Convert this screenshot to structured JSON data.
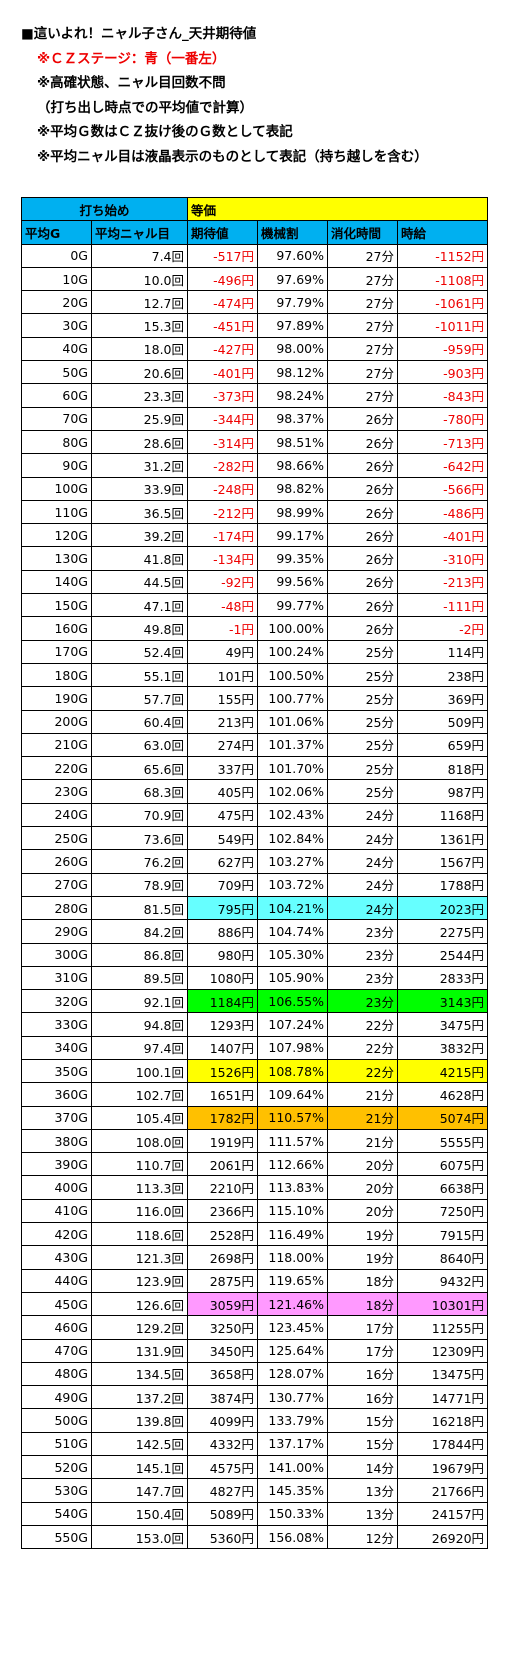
{
  "notes": {
    "title": "■這いよれ！ニャル子さん_天井期待値",
    "stage": "※ＣＺステージ：青（一番左）",
    "line3": "※高確状態、ニャル目回数不問",
    "line4": "（打ち出し時点での平均値で計算）",
    "line5": "※平均Ｇ数はＣＺ抜け後のＧ数として表記",
    "line6": "※平均ニャル目は液晶表示のものとして表記（持ち越しを含む）"
  },
  "table": {
    "header_start": "打ち始め",
    "header_rate": "等価",
    "columns": [
      "平均G",
      "平均ニャル目",
      "期待値",
      "機械割",
      "消化時間",
      "時給"
    ],
    "rows": [
      [
        "0G",
        "7.4回",
        "-517円",
        "97.60%",
        "27分",
        "-1152円"
      ],
      [
        "10G",
        "10.0回",
        "-496円",
        "97.69%",
        "27分",
        "-1108円"
      ],
      [
        "20G",
        "12.7回",
        "-474円",
        "97.79%",
        "27分",
        "-1061円"
      ],
      [
        "30G",
        "15.3回",
        "-451円",
        "97.89%",
        "27分",
        "-1011円"
      ],
      [
        "40G",
        "18.0回",
        "-427円",
        "98.00%",
        "27分",
        "-959円"
      ],
      [
        "50G",
        "20.6回",
        "-401円",
        "98.12%",
        "27分",
        "-903円"
      ],
      [
        "60G",
        "23.3回",
        "-373円",
        "98.24%",
        "27分",
        "-843円"
      ],
      [
        "70G",
        "25.9回",
        "-344円",
        "98.37%",
        "26分",
        "-780円"
      ],
      [
        "80G",
        "28.6回",
        "-314円",
        "98.51%",
        "26分",
        "-713円"
      ],
      [
        "90G",
        "31.2回",
        "-282円",
        "98.66%",
        "26分",
        "-642円"
      ],
      [
        "100G",
        "33.9回",
        "-248円",
        "98.82%",
        "26分",
        "-566円"
      ],
      [
        "110G",
        "36.5回",
        "-212円",
        "98.99%",
        "26分",
        "-486円"
      ],
      [
        "120G",
        "39.2回",
        "-174円",
        "99.17%",
        "26分",
        "-401円"
      ],
      [
        "130G",
        "41.8回",
        "-134円",
        "99.35%",
        "26分",
        "-310円"
      ],
      [
        "140G",
        "44.5回",
        "-92円",
        "99.56%",
        "26分",
        "-213円"
      ],
      [
        "150G",
        "47.1回",
        "-48円",
        "99.77%",
        "26分",
        "-111円"
      ],
      [
        "160G",
        "49.8回",
        "-1円",
        "100.00%",
        "26分",
        "-2円"
      ],
      [
        "170G",
        "52.4回",
        "49円",
        "100.24%",
        "25分",
        "114円"
      ],
      [
        "180G",
        "55.1回",
        "101円",
        "100.50%",
        "25分",
        "238円"
      ],
      [
        "190G",
        "57.7回",
        "155円",
        "100.77%",
        "25分",
        "369円"
      ],
      [
        "200G",
        "60.4回",
        "213円",
        "101.06%",
        "25分",
        "509円"
      ],
      [
        "210G",
        "63.0回",
        "274円",
        "101.37%",
        "25分",
        "659円"
      ],
      [
        "220G",
        "65.6回",
        "337円",
        "101.70%",
        "25分",
        "818円"
      ],
      [
        "230G",
        "68.3回",
        "405円",
        "102.06%",
        "25分",
        "987円"
      ],
      [
        "240G",
        "70.9回",
        "475円",
        "102.43%",
        "24分",
        "1168円"
      ],
      [
        "250G",
        "73.6回",
        "549円",
        "102.84%",
        "24分",
        "1361円"
      ],
      [
        "260G",
        "76.2回",
        "627円",
        "103.27%",
        "24分",
        "1567円"
      ],
      [
        "270G",
        "78.9回",
        "709円",
        "103.72%",
        "24分",
        "1788円"
      ],
      [
        "280G",
        "81.5回",
        "795円",
        "104.21%",
        "24分",
        "2023円"
      ],
      [
        "290G",
        "84.2回",
        "886円",
        "104.74%",
        "23分",
        "2275円"
      ],
      [
        "300G",
        "86.8回",
        "980円",
        "105.30%",
        "23分",
        "2544円"
      ],
      [
        "310G",
        "89.5回",
        "1080円",
        "105.90%",
        "23分",
        "2833円"
      ],
      [
        "320G",
        "92.1回",
        "1184円",
        "106.55%",
        "23分",
        "3143円"
      ],
      [
        "330G",
        "94.8回",
        "1293円",
        "107.24%",
        "22分",
        "3475円"
      ],
      [
        "340G",
        "97.4回",
        "1407円",
        "107.98%",
        "22分",
        "3832円"
      ],
      [
        "350G",
        "100.1回",
        "1526円",
        "108.78%",
        "22分",
        "4215円"
      ],
      [
        "360G",
        "102.7回",
        "1651円",
        "109.64%",
        "21分",
        "4628円"
      ],
      [
        "370G",
        "105.4回",
        "1782円",
        "110.57%",
        "21分",
        "5074円"
      ],
      [
        "380G",
        "108.0回",
        "1919円",
        "111.57%",
        "21分",
        "5555円"
      ],
      [
        "390G",
        "110.7回",
        "2061円",
        "112.66%",
        "20分",
        "6075円"
      ],
      [
        "400G",
        "113.3回",
        "2210円",
        "113.83%",
        "20分",
        "6638円"
      ],
      [
        "410G",
        "116.0回",
        "2366円",
        "115.10%",
        "20分",
        "7250円"
      ],
      [
        "420G",
        "118.6回",
        "2528円",
        "116.49%",
        "19分",
        "7915円"
      ],
      [
        "430G",
        "121.3回",
        "2698円",
        "118.00%",
        "19分",
        "8640円"
      ],
      [
        "440G",
        "123.9回",
        "2875円",
        "119.65%",
        "18分",
        "9432円"
      ],
      [
        "450G",
        "126.6回",
        "3059円",
        "121.46%",
        "18分",
        "10301円"
      ],
      [
        "460G",
        "129.2回",
        "3250円",
        "123.45%",
        "17分",
        "11255円"
      ],
      [
        "470G",
        "131.9回",
        "3450円",
        "125.64%",
        "17分",
        "12309円"
      ],
      [
        "480G",
        "134.5回",
        "3658円",
        "128.07%",
        "16分",
        "13475円"
      ],
      [
        "490G",
        "137.2回",
        "3874円",
        "130.77%",
        "16分",
        "14771円"
      ],
      [
        "500G",
        "139.8回",
        "4099円",
        "133.79%",
        "15分",
        "16218円"
      ],
      [
        "510G",
        "142.5回",
        "4332円",
        "137.17%",
        "15分",
        "17844円"
      ],
      [
        "520G",
        "145.1回",
        "4575円",
        "141.00%",
        "14分",
        "19679円"
      ],
      [
        "530G",
        "147.7回",
        "4827円",
        "145.35%",
        "13分",
        "21766円"
      ],
      [
        "540G",
        "150.4回",
        "5089円",
        "150.33%",
        "13分",
        "24157円"
      ],
      [
        "550G",
        "153.0回",
        "5360円",
        "156.08%",
        "12分",
        "26920円"
      ]
    ],
    "highlights": {
      "280G": "#66ffff",
      "320G": "#00ff00",
      "350G": "#ffff00",
      "370G": "#ffc000",
      "450G": "#ff99ff"
    },
    "negative_color": "#ee0000",
    "header_colors": {
      "blue": "#00b0f0",
      "yellow": "#ffff00"
    }
  }
}
